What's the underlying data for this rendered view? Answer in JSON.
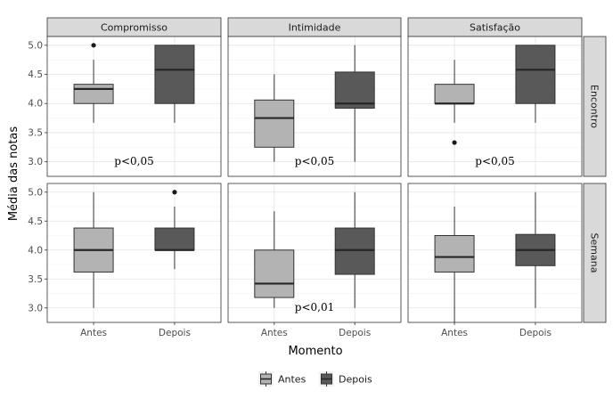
{
  "chart_data": {
    "type": "boxplot",
    "xlabel": "Momento",
    "ylabel": "Média das notas",
    "ylim": [
      2.75,
      5.15
    ],
    "yticks": [
      "3.0",
      "3.5",
      "4.0",
      "4.5",
      "5.0"
    ],
    "categories": [
      "Antes",
      "Depois"
    ],
    "columns": [
      "Compromisso",
      "Intimidade",
      "Satisfação"
    ],
    "rows": [
      "Encontro",
      "Semana"
    ],
    "colors": {
      "Antes": "#b3b3b3",
      "Depois": "#595959"
    },
    "legend": {
      "position": "bottom",
      "entries": [
        {
          "label": "Antes",
          "color": "#b3b3b3"
        },
        {
          "label": "Depois",
          "color": "#595959"
        }
      ]
    },
    "grid": true,
    "panels": [
      {
        "row": "Encontro",
        "col": "Compromisso",
        "annotation": "p<0,05",
        "boxes": {
          "Antes": {
            "min": 3.67,
            "q1": 4.0,
            "median": 4.25,
            "q3": 4.33,
            "max": 4.75,
            "outliers": [
              5.0
            ]
          },
          "Depois": {
            "min": 3.67,
            "q1": 4.0,
            "median": 4.58,
            "q3": 5.0,
            "max": 5.0,
            "outliers": []
          }
        }
      },
      {
        "row": "Encontro",
        "col": "Intimidade",
        "annotation": "p<0,05",
        "boxes": {
          "Antes": {
            "min": 3.0,
            "q1": 3.25,
            "median": 3.75,
            "q3": 4.06,
            "max": 4.5,
            "outliers": []
          },
          "Depois": {
            "min": 3.0,
            "q1": 3.92,
            "median": 4.0,
            "q3": 4.54,
            "max": 5.0,
            "outliers": []
          }
        }
      },
      {
        "row": "Encontro",
        "col": "Satisfação",
        "annotation": "p<0,05",
        "boxes": {
          "Antes": {
            "min": 3.67,
            "q1": 4.0,
            "median": 4.0,
            "q3": 4.33,
            "max": 4.75,
            "outliers": [
              3.33
            ]
          },
          "Depois": {
            "min": 3.67,
            "q1": 4.0,
            "median": 4.58,
            "q3": 5.0,
            "max": 5.0,
            "outliers": []
          }
        }
      },
      {
        "row": "Semana",
        "col": "Compromisso",
        "annotation": "",
        "boxes": {
          "Antes": {
            "min": 3.0,
            "q1": 3.62,
            "median": 4.0,
            "q3": 4.38,
            "max": 5.0,
            "outliers": []
          },
          "Depois": {
            "min": 3.67,
            "q1": 4.0,
            "median": 4.0,
            "q3": 4.38,
            "max": 4.75,
            "outliers": [
              5.0
            ]
          }
        }
      },
      {
        "row": "Semana",
        "col": "Intimidade",
        "annotation": "p<0,01",
        "boxes": {
          "Antes": {
            "min": 3.0,
            "q1": 3.18,
            "median": 3.42,
            "q3": 4.0,
            "max": 4.67,
            "outliers": []
          },
          "Depois": {
            "min": 3.0,
            "q1": 3.58,
            "median": 4.0,
            "q3": 4.38,
            "max": 5.0,
            "outliers": []
          }
        }
      },
      {
        "row": "Semana",
        "col": "Satisfação",
        "annotation": "",
        "boxes": {
          "Antes": {
            "min": 2.75,
            "q1": 3.62,
            "median": 3.88,
            "q3": 4.25,
            "max": 4.75,
            "outliers": []
          },
          "Depois": {
            "min": 3.0,
            "q1": 3.73,
            "median": 4.0,
            "q3": 4.27,
            "max": 5.0,
            "outliers": []
          }
        }
      }
    ]
  }
}
